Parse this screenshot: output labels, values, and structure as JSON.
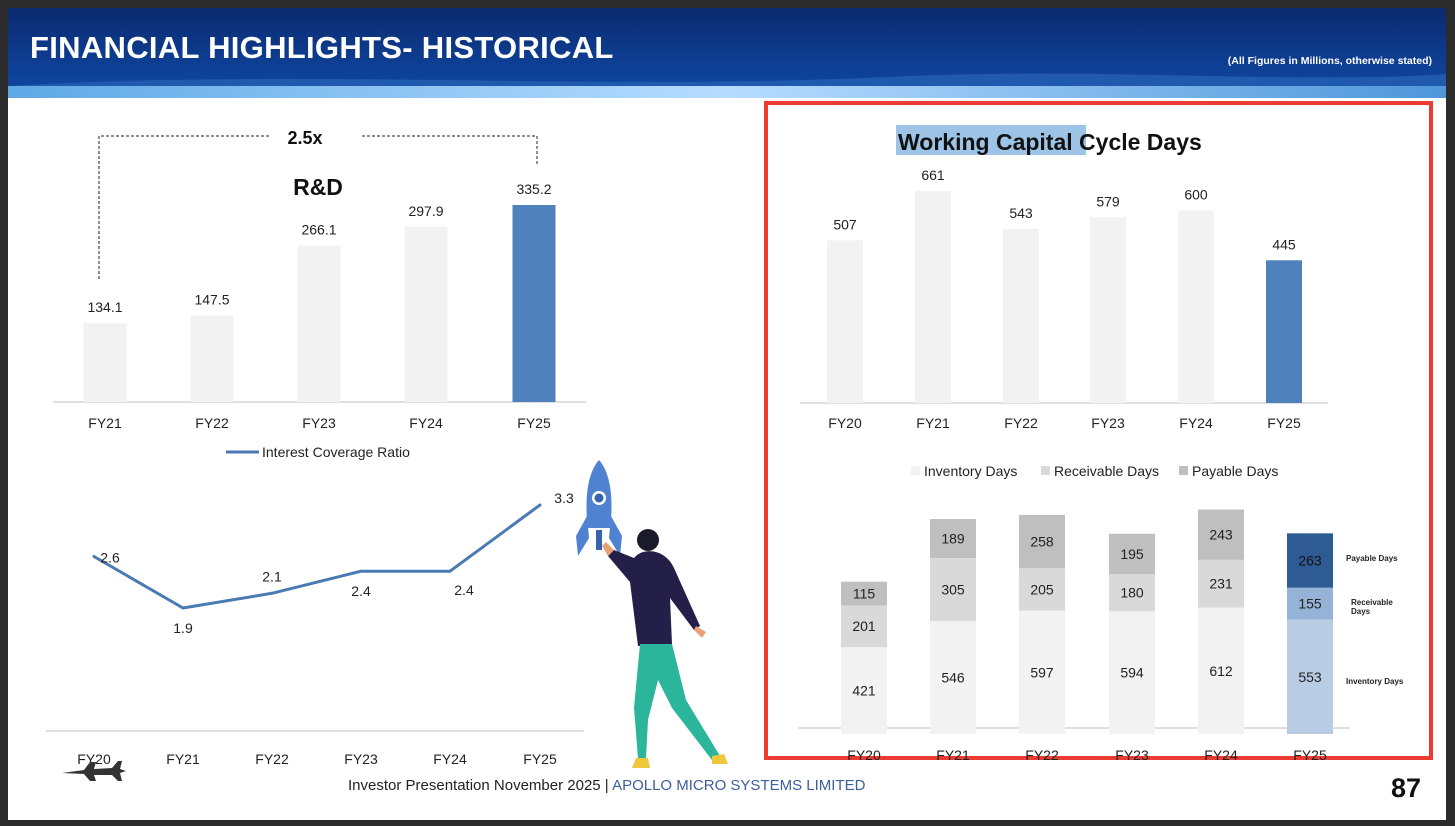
{
  "header": {
    "title": "FINANCIAL HIGHLIGHTS- HISTORICAL",
    "note": "(All Figures in Millions, otherwise stated)"
  },
  "footer": {
    "text": "Investor Presentation November 2025 |",
    "company": "APOLLO MICRO SYSTEMS LIMITED",
    "page_number": "87"
  },
  "colors": {
    "bar_default": "#f2f2f2",
    "bar_highlight": "#4f81bd",
    "line": "#4a7ab4",
    "inventory": "#f2f2f2",
    "receivable": "#d9d9d9",
    "payable": "#bfbfbf",
    "fy25_inventory": "#b8cce4",
    "fy25_receivable": "#95b3d7",
    "fy25_payable": "#2e5b94",
    "highlight_text_bg": "#9dc3e6",
    "frame": "#ec3b33"
  },
  "chart_data": [
    {
      "id": "rnd",
      "type": "bar",
      "title": "R&D",
      "annotation": "2.5x",
      "categories": [
        "FY21",
        "FY22",
        "FY23",
        "FY24",
        "FY25"
      ],
      "values": [
        134.1,
        147.5,
        266.1,
        297.9,
        335.2
      ],
      "highlight_index": 4,
      "ylim": [
        0,
        335.2
      ]
    },
    {
      "id": "icr",
      "type": "line",
      "legend": "Interest Coverage Ratio",
      "categories": [
        "FY20",
        "FY21",
        "FY22",
        "FY23",
        "FY24",
        "FY25"
      ],
      "values": [
        2.6,
        1.9,
        2.1,
        2.4,
        2.4,
        3.3
      ],
      "ylim": [
        1.9,
        3.3
      ]
    },
    {
      "id": "wcc",
      "type": "bar",
      "title_highlight": "Working Capital",
      "title_rest": " Cycle Days",
      "categories": [
        "FY20",
        "FY21",
        "FY22",
        "FY23",
        "FY24",
        "FY25"
      ],
      "values": [
        507,
        661,
        543,
        579,
        600,
        445
      ],
      "highlight_index": 5,
      "ylim": [
        0,
        661
      ]
    },
    {
      "id": "stacked",
      "type": "bar",
      "stacked": true,
      "categories": [
        "FY20",
        "FY21",
        "FY22",
        "FY23",
        "FY24",
        "FY25"
      ],
      "series": [
        {
          "name": "Inventory Days",
          "values": [
            421,
            546,
            597,
            594,
            612,
            553
          ]
        },
        {
          "name": "Receivable Days",
          "values": [
            201,
            305,
            205,
            180,
            231,
            155
          ]
        },
        {
          "name": "Payable Days",
          "values": [
            115,
            189,
            258,
            195,
            243,
            263
          ]
        }
      ],
      "side_labels": [
        "Payable Days",
        "Receivable Days",
        "Inventory Days"
      ],
      "legend_position": "top"
    }
  ]
}
